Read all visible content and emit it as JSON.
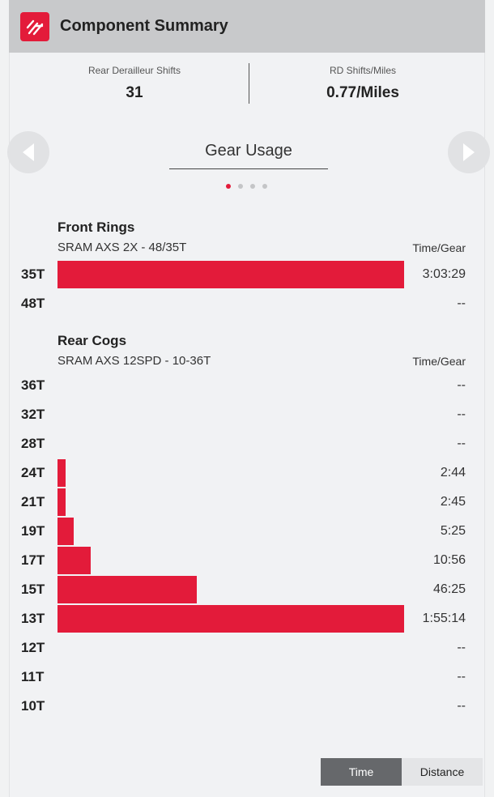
{
  "header": {
    "title": "Component Summary",
    "logo_icon": "quarq-logo-icon"
  },
  "stats": [
    {
      "label": "Rear Derailleur Shifts",
      "value": "31"
    },
    {
      "label": "RD Shifts/Miles",
      "value": "0.77/Miles"
    }
  ],
  "carousel": {
    "title": "Gear Usage",
    "page_count": 4,
    "active_page": 1,
    "prev_icon": "chevron-left-icon",
    "next_icon": "chevron-right-icon"
  },
  "front": {
    "title": "Front Rings",
    "subtitle": "SRAM AXS 2X - 48/35T",
    "column_header": "Time/Gear",
    "gears": [
      {
        "gear": "35T",
        "value": "3:03:29",
        "fraction": 1.0
      },
      {
        "gear": "48T",
        "value": "--",
        "fraction": 0
      }
    ]
  },
  "rear": {
    "title": "Rear Cogs",
    "subtitle": "SRAM AXS 12SPD - 10-36T",
    "column_header": "Time/Gear",
    "gears": [
      {
        "gear": "36T",
        "value": "--",
        "fraction": 0
      },
      {
        "gear": "32T",
        "value": "--",
        "fraction": 0
      },
      {
        "gear": "28T",
        "value": "--",
        "fraction": 0
      },
      {
        "gear": "24T",
        "value": "2:44",
        "fraction": 0.023
      },
      {
        "gear": "21T",
        "value": "2:45",
        "fraction": 0.024
      },
      {
        "gear": "19T",
        "value": "5:25",
        "fraction": 0.047
      },
      {
        "gear": "17T",
        "value": "10:56",
        "fraction": 0.095
      },
      {
        "gear": "15T",
        "value": "46:25",
        "fraction": 0.402
      },
      {
        "gear": "13T",
        "value": "1:55:14",
        "fraction": 1.0
      },
      {
        "gear": "12T",
        "value": "--",
        "fraction": 0
      },
      {
        "gear": "11T",
        "value": "--",
        "fraction": 0
      },
      {
        "gear": "10T",
        "value": "--",
        "fraction": 0
      }
    ]
  },
  "toggle": {
    "time_label": "Time",
    "distance_label": "Distance",
    "selected": "Time"
  },
  "colors": {
    "accent": "#e31b3a",
    "header_bg": "#c8c9cb",
    "selected_toggle": "#66686b"
  }
}
